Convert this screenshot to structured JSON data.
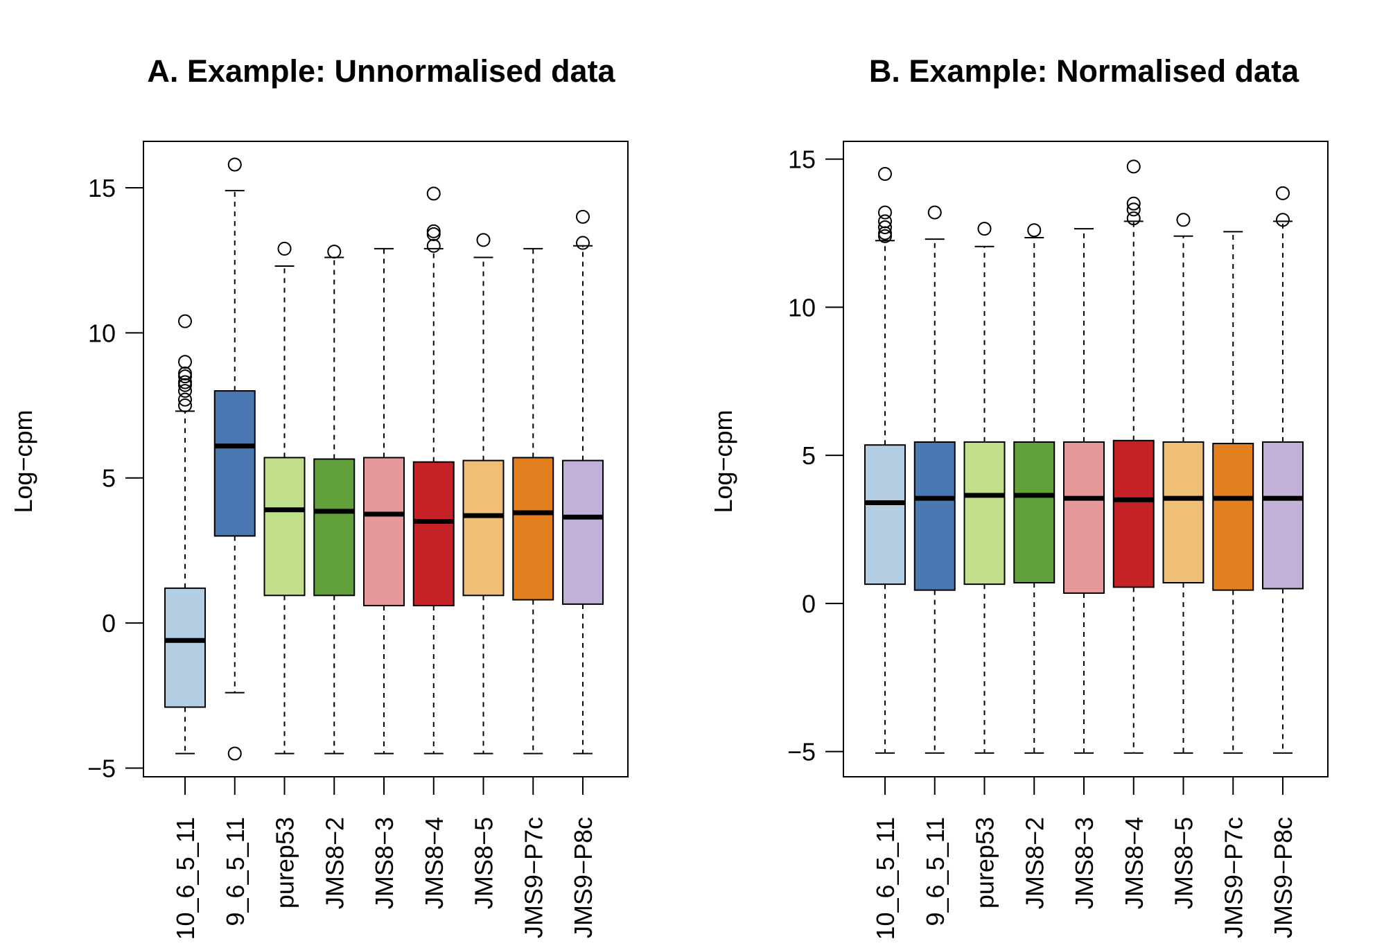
{
  "colors": [
    "#b3cde3",
    "#4a78b3",
    "#c2e08c",
    "#62a03b",
    "#e79898",
    "#c42226",
    "#efbf78",
    "#e37f1f",
    "#c2b1d6"
  ],
  "chart_data": [
    {
      "type": "box",
      "title": "A. Example: Unnormalised data",
      "ylabel": "Log−cpm",
      "ylim": [
        -5.3,
        16.6
      ],
      "yticks": [
        15,
        10,
        5,
        0,
        -5
      ],
      "ytick_labels": [
        "15",
        "10",
        "5",
        "0",
        "−5"
      ],
      "categories": [
        "10_6_5_11",
        "9_6_5_11",
        "purep53",
        "JMS8−2",
        "JMS8−3",
        "JMS8−4",
        "JMS8−5",
        "JMS9−P7c",
        "JMS9−P8c"
      ],
      "boxes": [
        {
          "whisker_low": -4.5,
          "q1": -2.9,
          "median": -0.6,
          "q3": 1.2,
          "whisker_high": 7.3,
          "outliers": [
            10.4,
            9.0,
            8.6,
            8.5,
            8.3,
            8.2,
            8.0,
            7.7,
            7.5
          ]
        },
        {
          "whisker_low": -2.4,
          "q1": 3.0,
          "median": 6.1,
          "q3": 8.0,
          "whisker_high": 14.9,
          "outliers": [
            15.8,
            -4.5
          ]
        },
        {
          "whisker_low": -4.5,
          "q1": 0.95,
          "median": 3.9,
          "q3": 5.7,
          "whisker_high": 12.3,
          "outliers": [
            12.9
          ]
        },
        {
          "whisker_low": -4.5,
          "q1": 0.95,
          "median": 3.85,
          "q3": 5.65,
          "whisker_high": 12.6,
          "outliers": [
            12.8
          ]
        },
        {
          "whisker_low": -4.5,
          "q1": 0.6,
          "median": 3.75,
          "q3": 5.7,
          "whisker_high": 12.9,
          "outliers": []
        },
        {
          "whisker_low": -4.5,
          "q1": 0.6,
          "median": 3.5,
          "q3": 5.55,
          "whisker_high": 12.9,
          "outliers": [
            14.8,
            13.5,
            13.4,
            13.0
          ]
        },
        {
          "whisker_low": -4.5,
          "q1": 0.95,
          "median": 3.7,
          "q3": 5.6,
          "whisker_high": 12.6,
          "outliers": [
            13.2
          ]
        },
        {
          "whisker_low": -4.5,
          "q1": 0.8,
          "median": 3.8,
          "q3": 5.7,
          "whisker_high": 12.9,
          "outliers": []
        },
        {
          "whisker_low": -4.5,
          "q1": 0.65,
          "median": 3.65,
          "q3": 5.6,
          "whisker_high": 13.0,
          "outliers": [
            14.0,
            13.1
          ]
        }
      ]
    },
    {
      "type": "box",
      "title": "B. Example: Normalised data",
      "ylabel": "Log−cpm",
      "ylim": [
        -5.85,
        15.6
      ],
      "yticks": [
        15,
        10,
        5,
        0,
        -5
      ],
      "ytick_labels": [
        "15",
        "10",
        "5",
        "0",
        "−5"
      ],
      "categories": [
        "10_6_5_11",
        "9_6_5_11",
        "purep53",
        "JMS8−2",
        "JMS8−3",
        "JMS8−4",
        "JMS8−5",
        "JMS9−P7c",
        "JMS9−P8c"
      ],
      "boxes": [
        {
          "whisker_low": -5.05,
          "q1": 0.65,
          "median": 3.4,
          "q3": 5.35,
          "whisker_high": 12.25,
          "outliers": [
            14.5,
            13.2,
            12.9,
            12.7,
            12.5,
            12.4
          ]
        },
        {
          "whisker_low": -5.05,
          "q1": 0.45,
          "median": 3.55,
          "q3": 5.45,
          "whisker_high": 12.3,
          "outliers": [
            13.2
          ]
        },
        {
          "whisker_low": -5.05,
          "q1": 0.65,
          "median": 3.65,
          "q3": 5.45,
          "whisker_high": 12.05,
          "outliers": [
            12.65
          ]
        },
        {
          "whisker_low": -5.05,
          "q1": 0.7,
          "median": 3.65,
          "q3": 5.45,
          "whisker_high": 12.35,
          "outliers": [
            12.6
          ]
        },
        {
          "whisker_low": -5.05,
          "q1": 0.35,
          "median": 3.55,
          "q3": 5.45,
          "whisker_high": 12.65,
          "outliers": []
        },
        {
          "whisker_low": -5.05,
          "q1": 0.55,
          "median": 3.5,
          "q3": 5.5,
          "whisker_high": 12.9,
          "outliers": [
            14.75,
            13.5,
            13.3,
            13.0
          ]
        },
        {
          "whisker_low": -5.05,
          "q1": 0.7,
          "median": 3.55,
          "q3": 5.45,
          "whisker_high": 12.4,
          "outliers": [
            12.95
          ]
        },
        {
          "whisker_low": -5.05,
          "q1": 0.45,
          "median": 3.55,
          "q3": 5.4,
          "whisker_high": 12.55,
          "outliers": []
        },
        {
          "whisker_low": -5.05,
          "q1": 0.5,
          "median": 3.55,
          "q3": 5.45,
          "whisker_high": 12.9,
          "outliers": [
            13.85,
            12.95
          ]
        }
      ]
    }
  ]
}
